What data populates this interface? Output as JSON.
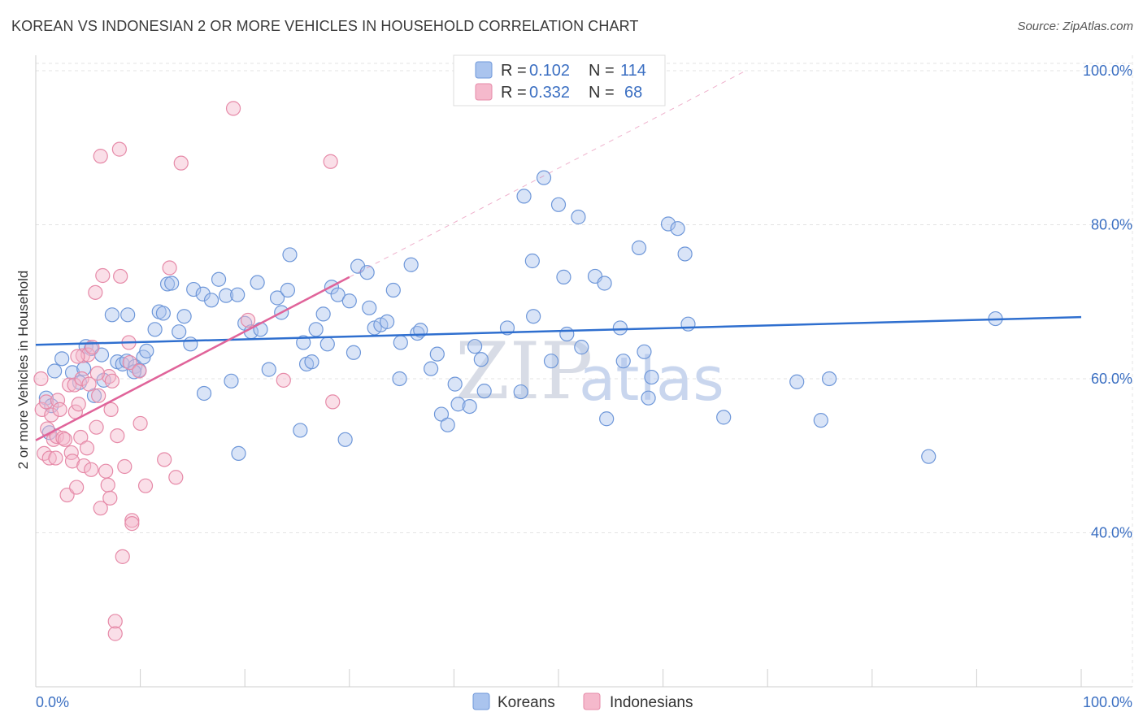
{
  "title": "KOREAN VS INDONESIAN 2 OR MORE VEHICLES IN HOUSEHOLD CORRELATION CHART",
  "source": "Source: ZipAtlas.com",
  "watermark": {
    "zip": "ZIP",
    "atlas": "atlas"
  },
  "colors": {
    "korean_fill": "#aac4ee",
    "korean_stroke": "#6e97d9",
    "korean_line": "#2f6fcf",
    "indonesian_fill": "#f5b9cc",
    "indonesian_stroke": "#e68aa8",
    "indonesian_line": "#e0649a",
    "grid": "#e3e3e3",
    "axis_text": "#3b6fc2"
  },
  "legend": {
    "rows": [
      {
        "r_label": "R =",
        "r_value": "0.102",
        "n_label": "N =",
        "n_value": "114"
      },
      {
        "r_label": "R =",
        "r_value": "0.332",
        "n_label": "N =",
        "n_value": "68"
      }
    ]
  },
  "chart_data": {
    "type": "scatter",
    "title": "KOREAN VS INDONESIAN 2 OR MORE VEHICLES IN HOUSEHOLD CORRELATION CHART",
    "xlabel": "",
    "ylabel": "2 or more Vehicles in Household",
    "xlim": [
      0,
      100
    ],
    "ylim": [
      20,
      102
    ],
    "x_tick_labels": [
      "0.0%",
      "100.0%"
    ],
    "y_ticks": [
      40,
      60,
      80,
      100
    ],
    "y_tick_labels": [
      "40.0%",
      "60.0%",
      "80.0%",
      "100.0%"
    ],
    "grid": true,
    "series": [
      {
        "name": "Koreans",
        "trend": {
          "x": [
            0,
            100
          ],
          "y": [
            64.4,
            68.0
          ]
        },
        "points": [
          [
            1,
            57.5
          ],
          [
            1.3,
            53
          ],
          [
            1.8,
            61
          ],
          [
            2.5,
            62.6
          ],
          [
            3.5,
            60.8
          ],
          [
            4.2,
            59.5
          ],
          [
            4.8,
            64.2
          ],
          [
            5.3,
            63.9
          ],
          [
            5.6,
            57.8
          ],
          [
            6.3,
            63.1
          ],
          [
            6.5,
            59.8
          ],
          [
            7.3,
            68.3
          ],
          [
            7.8,
            62.2
          ],
          [
            8.3,
            61.9
          ],
          [
            8.7,
            62.3
          ],
          [
            8.8,
            68.3
          ],
          [
            9.5,
            61.6
          ],
          [
            9.9,
            61.1
          ],
          [
            10.3,
            62.8
          ],
          [
            10.6,
            63.6
          ],
          [
            11.4,
            66.4
          ],
          [
            11.8,
            68.7
          ],
          [
            12.2,
            68.5
          ],
          [
            12.6,
            72.3
          ],
          [
            13,
            72.4
          ],
          [
            13.7,
            66.1
          ],
          [
            14.2,
            68.1
          ],
          [
            14.8,
            64.5
          ],
          [
            15.1,
            71.6
          ],
          [
            16.0,
            71.0
          ],
          [
            16.1,
            58.1
          ],
          [
            16.8,
            70.2
          ],
          [
            17.5,
            72.9
          ],
          [
            18.2,
            70.8
          ],
          [
            18.7,
            59.7
          ],
          [
            19.3,
            70.9
          ],
          [
            19.4,
            50.3
          ],
          [
            20,
            67.2
          ],
          [
            20.6,
            66.1
          ],
          [
            21.2,
            72.5
          ],
          [
            21.5,
            66.4
          ],
          [
            22.3,
            61.2
          ],
          [
            23.1,
            70.5
          ],
          [
            23.5,
            68.6
          ],
          [
            24.1,
            71.5
          ],
          [
            24.3,
            76.1
          ],
          [
            25.3,
            53.3
          ],
          [
            25.6,
            64.7
          ],
          [
            25.9,
            61.9
          ],
          [
            26.4,
            62.2
          ],
          [
            26.8,
            66.4
          ],
          [
            27.5,
            68.4
          ],
          [
            27.9,
            64.5
          ],
          [
            28.3,
            71.9
          ],
          [
            28.9,
            70.9
          ],
          [
            29.6,
            52.1
          ],
          [
            30.0,
            70.1
          ],
          [
            30.4,
            63.4
          ],
          [
            30.8,
            74.6
          ],
          [
            31.7,
            73.8
          ],
          [
            31.9,
            69.2
          ],
          [
            32.4,
            66.6
          ],
          [
            33.0,
            67.0
          ],
          [
            33.6,
            67.4
          ],
          [
            34.2,
            71.5
          ],
          [
            34.8,
            60.0
          ],
          [
            34.9,
            64.7
          ],
          [
            35.9,
            74.8
          ],
          [
            36.5,
            65.9
          ],
          [
            36.8,
            66.3
          ],
          [
            37.8,
            61.3
          ],
          [
            38.4,
            63.2
          ],
          [
            38.8,
            55.4
          ],
          [
            39.4,
            54.0
          ],
          [
            40.1,
            59.3
          ],
          [
            40.4,
            56.7
          ],
          [
            41.5,
            56.4
          ],
          [
            42.0,
            64.2
          ],
          [
            42.6,
            62.5
          ],
          [
            42.9,
            58.4
          ],
          [
            45.1,
            66.6
          ],
          [
            46.4,
            58.3
          ],
          [
            46.7,
            83.7
          ],
          [
            47.5,
            75.3
          ],
          [
            47.6,
            68.1
          ],
          [
            48.6,
            86.1
          ],
          [
            49.3,
            62.3
          ],
          [
            50.0,
            82.6
          ],
          [
            50.5,
            73.2
          ],
          [
            50.8,
            65.8
          ],
          [
            51.9,
            81.0
          ],
          [
            52.2,
            64.1
          ],
          [
            53.5,
            73.3
          ],
          [
            54.4,
            72.4
          ],
          [
            54.6,
            54.8
          ],
          [
            55.9,
            66.6
          ],
          [
            56.2,
            62.3
          ],
          [
            57.7,
            77.0
          ],
          [
            58.2,
            63.5
          ],
          [
            58.6,
            57.5
          ],
          [
            58.9,
            60.2
          ],
          [
            60.5,
            80.1
          ],
          [
            61.4,
            79.5
          ],
          [
            62.1,
            76.2
          ],
          [
            62.4,
            67.1
          ],
          [
            65.8,
            55.0
          ],
          [
            72.8,
            59.6
          ],
          [
            75.1,
            54.6
          ],
          [
            75.9,
            60.0
          ],
          [
            85.4,
            49.9
          ],
          [
            91.8,
            67.8
          ],
          [
            1.5,
            56.5
          ],
          [
            4.6,
            61.3
          ],
          [
            9.4,
            60.9
          ]
        ]
      },
      {
        "name": "Indonesians",
        "trend": {
          "x": [
            0,
            30
          ],
          "y": [
            52.0,
            73.2
          ]
        },
        "points": [
          [
            0.5,
            60.0
          ],
          [
            0.6,
            56.0
          ],
          [
            0.8,
            50.3
          ],
          [
            1,
            57.0
          ],
          [
            1.1,
            53.5
          ],
          [
            1.3,
            49.7
          ],
          [
            1.5,
            55.3
          ],
          [
            1.7,
            52.1
          ],
          [
            1.9,
            49.7
          ],
          [
            2,
            52.5
          ],
          [
            2.1,
            57.2
          ],
          [
            2.3,
            56.0
          ],
          [
            2.6,
            52.3
          ],
          [
            2.8,
            52.1
          ],
          [
            3.0,
            44.9
          ],
          [
            3.2,
            59.2
          ],
          [
            3.4,
            50.4
          ],
          [
            3.5,
            49.3
          ],
          [
            3.7,
            59.2
          ],
          [
            3.8,
            55.7
          ],
          [
            3.9,
            45.9
          ],
          [
            4.1,
            56.7
          ],
          [
            4.3,
            52.4
          ],
          [
            4.4,
            60.0
          ],
          [
            4.5,
            63.0
          ],
          [
            4.6,
            48.7
          ],
          [
            4.9,
            51.0
          ],
          [
            5.0,
            63.1
          ],
          [
            5.1,
            59.3
          ],
          [
            5.3,
            48.2
          ],
          [
            5.4,
            64.1
          ],
          [
            5.7,
            71.2
          ],
          [
            5.8,
            53.7
          ],
          [
            6.0,
            57.8
          ],
          [
            6.2,
            43.2
          ],
          [
            6.4,
            73.4
          ],
          [
            6.7,
            48.0
          ],
          [
            6.9,
            46.2
          ],
          [
            7.0,
            60.3
          ],
          [
            7.1,
            44.5
          ],
          [
            7.3,
            59.7
          ],
          [
            7.6,
            28.5
          ],
          [
            7.6,
            26.9
          ],
          [
            7.8,
            52.6
          ],
          [
            8.1,
            73.3
          ],
          [
            8.3,
            36.9
          ],
          [
            8.5,
            48.6
          ],
          [
            8.9,
            64.7
          ],
          [
            9.0,
            62.1
          ],
          [
            9.2,
            41.6
          ],
          [
            9.2,
            41.2
          ],
          [
            9.9,
            61.0
          ],
          [
            10.0,
            54.2
          ],
          [
            10.5,
            46.1
          ],
          [
            12.3,
            49.5
          ],
          [
            12.8,
            74.4
          ],
          [
            13.4,
            47.2
          ],
          [
            13.9,
            88.0
          ],
          [
            8.0,
            89.8
          ],
          [
            6.2,
            88.9
          ],
          [
            18.9,
            95.1
          ],
          [
            20.3,
            67.6
          ],
          [
            23.7,
            59.8
          ],
          [
            28.2,
            88.2
          ],
          [
            28.4,
            57.0
          ],
          [
            4.0,
            62.9
          ],
          [
            5.9,
            60.7
          ],
          [
            7.2,
            56.0
          ]
        ]
      }
    ]
  },
  "bottom_legend": [
    {
      "label": "Koreans"
    },
    {
      "label": "Indonesians"
    }
  ]
}
